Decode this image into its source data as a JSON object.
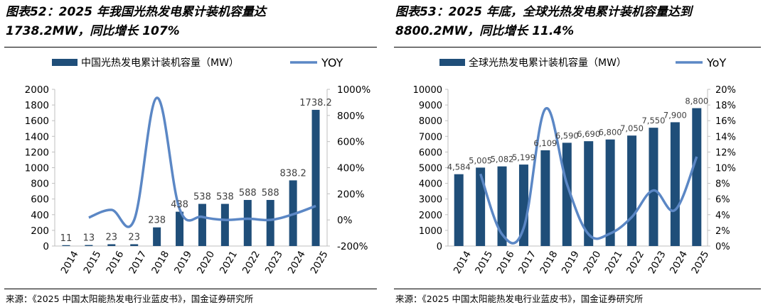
{
  "colors": {
    "bar": "#1f4e79",
    "line": "#5b87c5",
    "text": "#404040",
    "axis": "#bfbfbf"
  },
  "chart_data": [
    {
      "type": "bar",
      "title": "图表52：2025年我国光热发电累计装机容量达1738.2MW，同比增长107%",
      "title_lines": [
        "图表52：2025 年我国光热发电累计装机容量达",
        "1738.2MW，同比增长 107%"
      ],
      "legend": {
        "bar": "中国光热发电累计装机容量（MW）",
        "line": "YOY",
        "position": "top"
      },
      "categories": [
        "2014",
        "2015",
        "2016",
        "2017",
        "2018",
        "2019",
        "2020",
        "2021",
        "2022",
        "2023",
        "2024",
        "2025"
      ],
      "series": [
        {
          "name": "中国光热发电累计装机容量（MW）",
          "type": "bar",
          "axis": "left",
          "values": [
            11,
            13,
            23,
            23,
            238,
            438,
            538,
            538,
            588,
            588,
            838.2,
            1738.2
          ],
          "labels": [
            "11",
            "13",
            "23",
            "23",
            "238",
            "438",
            "538",
            "538",
            "588",
            "588",
            "838.2",
            "1738.2"
          ]
        },
        {
          "name": "YOY",
          "type": "line",
          "axis": "right",
          "values": [
            null,
            18,
            77,
            0,
            935,
            84,
            23,
            0,
            9,
            0,
            43,
            107
          ]
        }
      ],
      "ylim_left": [
        0,
        2000
      ],
      "yticks_left": [
        "0",
        "200",
        "400",
        "600",
        "800",
        "1000",
        "1200",
        "1400",
        "1600",
        "1800",
        "2000"
      ],
      "ylim_right": [
        -200,
        1000
      ],
      "yticks_right": [
        "-200%",
        "0%",
        "200%",
        "400%",
        "600%",
        "800%",
        "1000%"
      ],
      "source": "来源：《2025 中国太阳能热发电行业蓝皮书》，国金证券研究所"
    },
    {
      "type": "bar",
      "title": "图表53：2025年底，全球光热发电累计装机容量达到8800.2MW，同比增长11.4%",
      "title_lines": [
        "图表53：2025 年底，全球光热发电累计装机容量达到",
        "8800.2MW，同比增长 11.4%"
      ],
      "legend": {
        "bar": "全球光热发电累计装机容量（MW）",
        "line": "YoY",
        "position": "top"
      },
      "categories": [
        "2014",
        "2015",
        "2016",
        "2017",
        "2018",
        "2019",
        "2020",
        "2021",
        "2022",
        "2023",
        "2024",
        "2025"
      ],
      "series": [
        {
          "name": "全球光热发电累计装机容量（MW）",
          "type": "bar",
          "axis": "left",
          "values": [
            4584,
            5005,
            5082,
            5199,
            6109,
            6590,
            6690,
            6800,
            7050,
            7550,
            7900,
            8800
          ],
          "labels": [
            "4,584",
            "5,005",
            "5,082",
            "5,199",
            "6,109",
            "6,590",
            "6,690",
            "6,800",
            "7,050",
            "7,550",
            "7,900",
            "8,800"
          ]
        },
        {
          "name": "YoY",
          "type": "line",
          "axis": "right",
          "values": [
            null,
            9.2,
            1.5,
            2.3,
            17.5,
            7.9,
            1.5,
            1.6,
            3.7,
            7.1,
            4.6,
            11.4
          ]
        }
      ],
      "ylim_left": [
        0,
        10000
      ],
      "yticks_left": [
        "0",
        "1000",
        "2000",
        "3000",
        "4000",
        "5000",
        "6000",
        "7000",
        "8000",
        "9000",
        "10000"
      ],
      "ylim_right": [
        0,
        20
      ],
      "yticks_right": [
        "0%",
        "2%",
        "4%",
        "6%",
        "8%",
        "10%",
        "12%",
        "14%",
        "16%",
        "18%",
        "20%"
      ],
      "source": "来源：《2025 中国太阳能热发电行业蓝皮书》，国金证券研究所"
    }
  ]
}
